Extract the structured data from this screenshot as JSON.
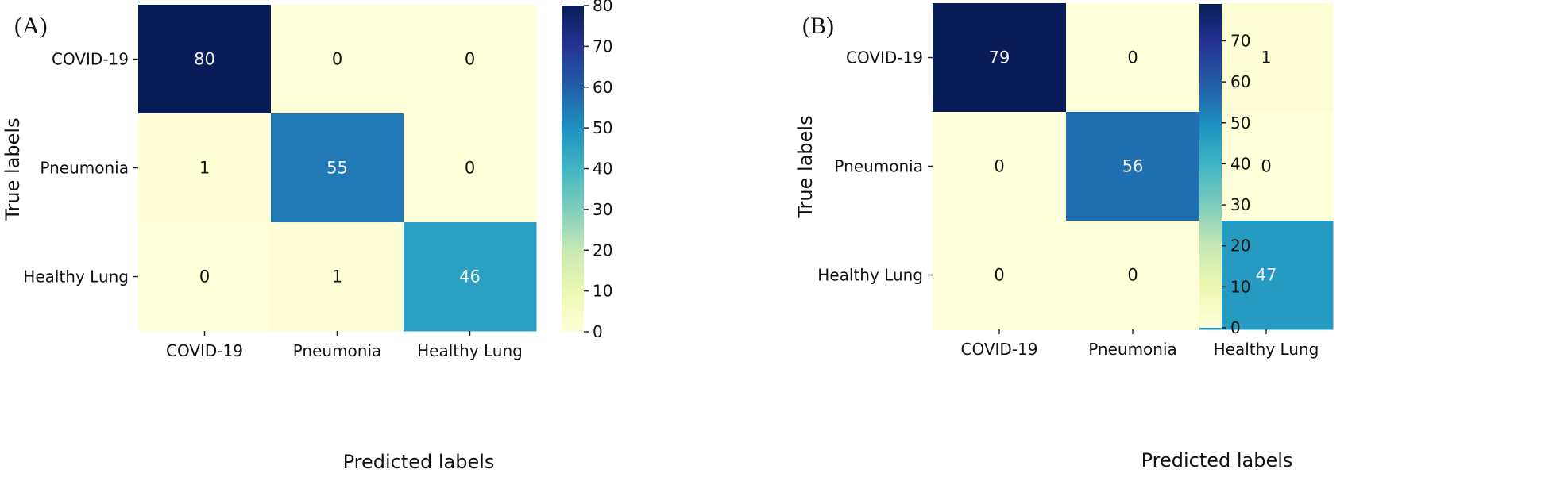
{
  "colors": {
    "colormap": [
      "#ffffd9",
      "#edf8b1",
      "#c7e9b4",
      "#7fcdbb",
      "#41b6c4",
      "#1d91c0",
      "#225ea8",
      "#253494",
      "#081d58"
    ],
    "text_dark": "#111111",
    "text_light": "#f0f0f0"
  },
  "chart_data": [
    {
      "type": "heatmap",
      "panel_label": "(A)",
      "row_labels": [
        "COVID-19",
        "Pneumonia",
        "Healthy Lung"
      ],
      "col_labels": [
        "COVID-19",
        "Pneumonia",
        "Healthy Lung"
      ],
      "values": [
        [
          80,
          0,
          0
        ],
        [
          1,
          55,
          0
        ],
        [
          0,
          1,
          46
        ]
      ],
      "xlabel": "Predicted labels",
      "ylabel": "True labels",
      "vmin": 0,
      "vmax": 80,
      "colorbar_ticks": [
        "0",
        "10",
        "20",
        "30",
        "40",
        "50",
        "60",
        "70",
        "80"
      ]
    },
    {
      "type": "heatmap",
      "panel_label": "(B)",
      "row_labels": [
        "COVID-19",
        "Pneumonia",
        "Healthy Lung"
      ],
      "col_labels": [
        "COVID-19",
        "Pneumonia",
        "Healthy Lung"
      ],
      "values": [
        [
          79,
          0,
          1
        ],
        [
          0,
          56,
          0
        ],
        [
          0,
          0,
          47
        ]
      ],
      "xlabel": "Predicted labels",
      "ylabel": "True labels",
      "vmin": 0,
      "vmax": 79,
      "colorbar_ticks": [
        "0",
        "10",
        "20",
        "30",
        "40",
        "50",
        "60",
        "70"
      ]
    }
  ]
}
